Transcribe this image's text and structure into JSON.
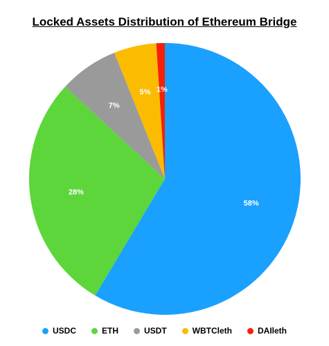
{
  "chart_data": {
    "type": "pie",
    "title": "Locked Assets Distribution of Ethereum Bridge",
    "categories": [
      "USDC",
      "ETH",
      "USDT",
      "WBTCleth",
      "DAIleth"
    ],
    "values": [
      58,
      28,
      7,
      5,
      1
    ],
    "labels": [
      "58%",
      "28%",
      "7%",
      "5%",
      "1%"
    ],
    "colors": [
      "#1aa0ff",
      "#5cd63a",
      "#9a9a9a",
      "#fbbb00",
      "#f5210a"
    ],
    "legend_position": "bottom",
    "start_angle": "top",
    "direction": "clockwise"
  }
}
